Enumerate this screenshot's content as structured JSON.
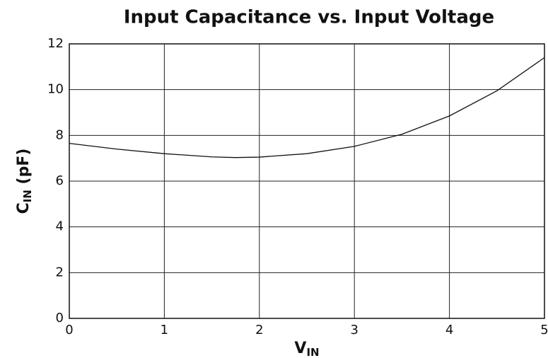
{
  "chart_data": {
    "type": "line",
    "title": "Input Capacitance vs. Input Voltage",
    "x_label": [
      "V",
      "IN"
    ],
    "y_label": [
      "C",
      "IN",
      " (pF)"
    ],
    "x": [
      0,
      0.5,
      1,
      1.5,
      1.75,
      2,
      2.5,
      3,
      3.5,
      4,
      4.5,
      5
    ],
    "series": [
      {
        "name": "CIN",
        "color": "#111111",
        "values": [
          7.65,
          7.4,
          7.2,
          7.06,
          7.03,
          7.05,
          7.2,
          7.52,
          8.05,
          8.85,
          9.95,
          11.4
        ]
      }
    ],
    "xlim": [
      0,
      5
    ],
    "xticks": [
      0,
      1,
      2,
      3,
      4,
      5
    ],
    "ylim": [
      0,
      12
    ],
    "yticks": [
      0,
      2,
      4,
      6,
      8,
      10,
      12
    ],
    "grid": true
  }
}
